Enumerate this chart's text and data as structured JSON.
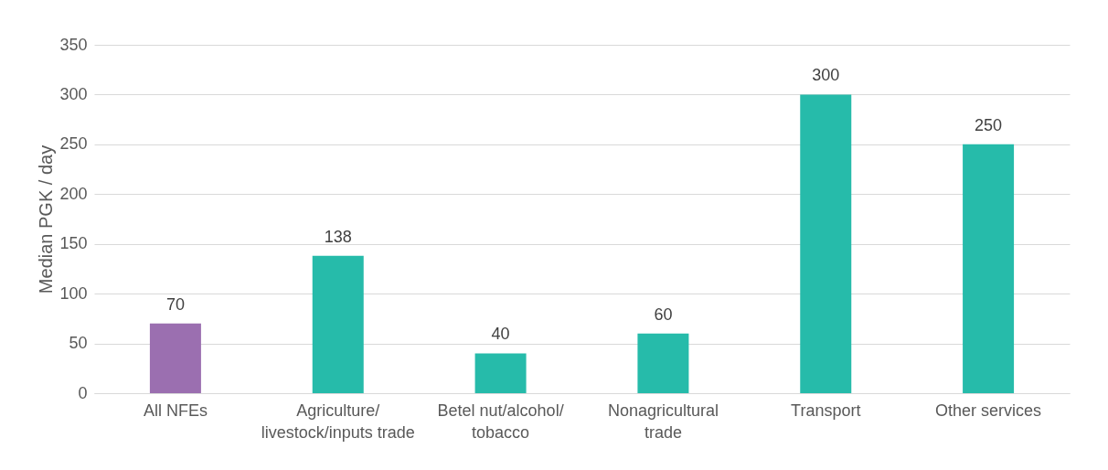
{
  "chart_data": {
    "type": "bar",
    "ylabel": "Median PGK / day",
    "categories": [
      "All NFEs",
      "Agriculture/\nlivestock/inputs trade",
      "Betel nut/alcohol/\ntobacco",
      "Nonagricultural\ntrade",
      "Transport",
      "Other services"
    ],
    "values": [
      70,
      138,
      40,
      60,
      300,
      250
    ],
    "colors": [
      "#9b6fb0",
      "#26bbaa",
      "#26bbaa",
      "#26bbaa",
      "#26bbaa",
      "#26bbaa"
    ],
    "ylim": [
      0,
      350
    ],
    "yticks": [
      0,
      50,
      100,
      150,
      200,
      250,
      300,
      350
    ],
    "grid": "y",
    "data_labels": true
  }
}
